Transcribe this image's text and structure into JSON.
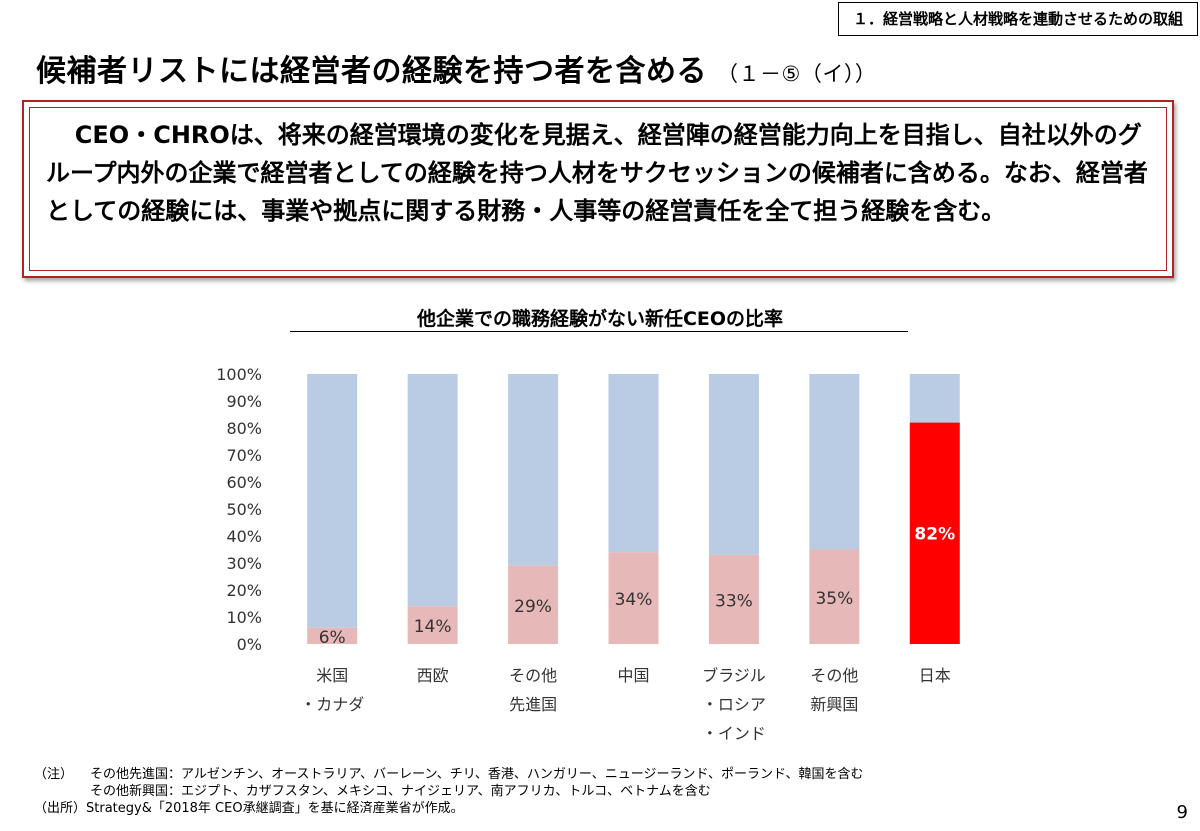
{
  "header": {
    "section_tag": "１．経営戦略と人材戦略を連動させるための取組",
    "title": "候補者リストには経営者の経験を持つ者を含める",
    "title_ref": "（１－⑤（イ））"
  },
  "summary": {
    "text": "CEO・CHROは、将来の経営環境の変化を見据え、経営陣の経営能力向上を目指し、自社以外のグループ内外の企業で経営者としての経験を持つ人材をサクセッションの候補者に含める。なお、経営者としての経験には、事業や拠点に関する財務・人事等の経営責任を全て担う経験を含む。"
  },
  "chart_data": {
    "type": "bar",
    "stacked": true,
    "title": "他企業での職務経験がない新任CEOの比率",
    "categories": [
      [
        "米国",
        "・カナダ"
      ],
      [
        "西欧"
      ],
      [
        "その他",
        "先進国"
      ],
      [
        "中国"
      ],
      [
        "ブラジル",
        "・ロシア",
        "・インド"
      ],
      [
        "その他",
        "新興国"
      ],
      [
        "日本"
      ]
    ],
    "values": [
      6,
      14,
      29,
      34,
      33,
      35,
      82
    ],
    "data_labels": [
      "6%",
      "14%",
      "29%",
      "34%",
      "33%",
      "35%",
      "82%"
    ],
    "highlight_index": 6,
    "ylim": [
      0,
      100
    ],
    "ytick_labels": [
      "0%",
      "10%",
      "20%",
      "30%",
      "40%",
      "50%",
      "60%",
      "70%",
      "80%",
      "90%",
      "100%"
    ],
    "grid": false,
    "colors": {
      "value": "#e6b8b8",
      "remainder": "#b9cce4",
      "highlight": "#ff0000",
      "highlight_label": "#ffffff",
      "label": "#333333"
    }
  },
  "notes": {
    "note_label": "（注）",
    "note_line1": "その他先進国：アルゼンチン、オーストラリア、バーレーン、チリ、香港、ハンガリー、ニュージーランド、ポーランド、韓国を含む",
    "note_line2": "その他新興国：エジプト、カザフスタン、メキシコ、ナイジェリア、南アフリカ、トルコ、ベトナムを含む",
    "source": "（出所）Strategy&「2018年 CEO承継調査」を基に経済産業省が作成。"
  },
  "page_number": "9"
}
